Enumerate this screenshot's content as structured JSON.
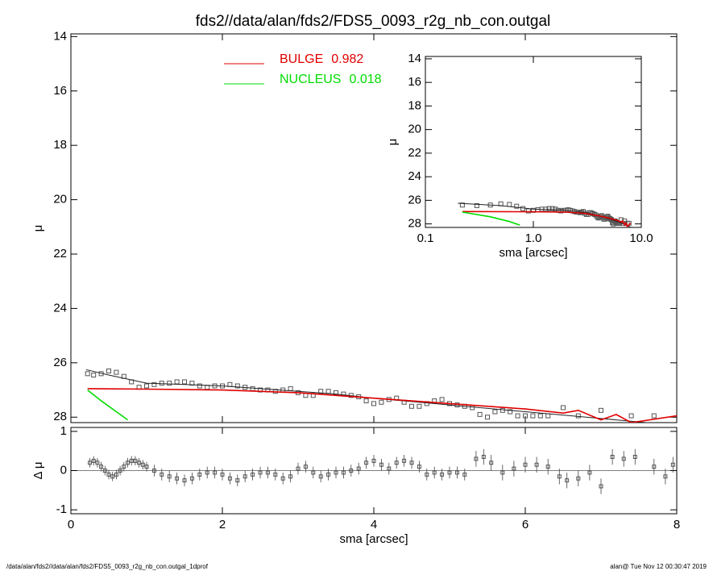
{
  "chart_data": [
    {
      "type": "scatter",
      "title": "fds2//data/alan/fds2/FDS5_0093_r2g_nb_con.outgal",
      "ylabel": "μ",
      "xlim": [
        0,
        8
      ],
      "xticks": [
        0,
        2,
        4,
        6,
        8
      ],
      "ylim": [
        28.2,
        13.9
      ],
      "yticks": [
        14,
        16,
        18,
        20,
        22,
        24,
        26,
        28
      ],
      "legend": "top-center",
      "series": [
        {
          "color": "#555555",
          "marker": "square",
          "x": [
            0.22,
            0.3,
            0.4,
            0.5,
            0.6,
            0.7,
            0.8,
            0.9,
            1.0,
            1.1,
            1.2,
            1.3,
            1.4,
            1.5,
            1.6,
            1.7,
            1.8,
            1.9,
            2.0,
            2.1,
            2.2,
            2.3,
            2.4,
            2.5,
            2.6,
            2.7,
            2.8,
            2.9,
            3.0,
            3.1,
            3.2,
            3.3,
            3.4,
            3.5,
            3.6,
            3.7,
            3.8,
            3.9,
            4.0,
            4.1,
            4.2,
            4.3,
            4.4,
            4.5,
            4.6,
            4.7,
            4.8,
            4.9,
            5.0,
            5.1,
            5.2,
            5.3,
            5.4,
            5.5,
            5.6,
            5.7,
            5.8,
            5.9,
            6.0,
            6.1,
            6.2,
            6.3,
            6.5,
            6.7,
            7.0,
            7.4,
            7.7
          ],
          "values": [
            26.4,
            26.45,
            26.4,
            26.3,
            26.35,
            26.5,
            26.7,
            26.9,
            26.85,
            26.8,
            26.75,
            26.75,
            26.7,
            26.7,
            26.75,
            26.85,
            26.9,
            26.85,
            26.85,
            26.8,
            26.85,
            26.9,
            26.95,
            27.0,
            27.0,
            27.05,
            27.0,
            26.95,
            27.1,
            27.2,
            27.2,
            27.05,
            27.05,
            27.1,
            27.15,
            27.2,
            27.25,
            27.4,
            27.5,
            27.45,
            27.35,
            27.3,
            27.45,
            27.6,
            27.6,
            27.5,
            27.4,
            27.35,
            27.5,
            27.55,
            27.6,
            27.65,
            27.9,
            28.0,
            27.8,
            27.75,
            27.8,
            27.95,
            27.95,
            27.95,
            27.95,
            27.95,
            27.65,
            27.95,
            27.75,
            27.95,
            27.95
          ]
        },
        {
          "color": "#222222",
          "x": [
            0.2,
            0.5,
            1.0,
            1.5,
            2,
            2.5,
            3,
            3.5,
            4,
            5,
            6,
            7,
            8
          ],
          "values": [
            26.25,
            26.45,
            26.75,
            26.8,
            26.85,
            26.95,
            27.05,
            27.15,
            27.3,
            27.55,
            27.8,
            28.05,
            28.3
          ]
        },
        {
          "name": "BULGE",
          "fraction": 0.982,
          "color": "#e00000",
          "x": [
            0.22,
            1,
            2,
            3,
            4,
            5,
            6,
            6.5,
            6.7,
            7.0,
            7.2,
            7.4,
            8
          ],
          "values": [
            26.95,
            26.97,
            27.0,
            27.1,
            27.3,
            27.5,
            27.7,
            27.85,
            27.75,
            28.1,
            27.9,
            28.2,
            27.95
          ]
        },
        {
          "name": "NUCLEUS",
          "fraction": 0.018,
          "color": "#00dd00",
          "x": [
            0.22,
            0.4,
            0.6,
            0.75
          ],
          "values": [
            27.0,
            27.4,
            27.8,
            28.1
          ]
        }
      ]
    },
    {
      "type": "errorbar",
      "xlabel": "sma [arcsec]",
      "ylabel": "Δ μ",
      "xlim": [
        0,
        8
      ],
      "xticks": [
        0,
        2,
        4,
        6,
        8
      ],
      "ylim": [
        -1.1,
        1.1
      ],
      "yticks": [
        -1,
        0,
        1
      ],
      "color": "#444444",
      "x": [
        0.25,
        0.3,
        0.35,
        0.4,
        0.45,
        0.5,
        0.55,
        0.6,
        0.65,
        0.7,
        0.75,
        0.8,
        0.85,
        0.9,
        0.95,
        1.0,
        1.1,
        1.2,
        1.3,
        1.4,
        1.5,
        1.6,
        1.7,
        1.8,
        1.9,
        2.0,
        2.1,
        2.2,
        2.3,
        2.4,
        2.5,
        2.6,
        2.7,
        2.8,
        2.9,
        3.0,
        3.1,
        3.2,
        3.3,
        3.4,
        3.5,
        3.6,
        3.7,
        3.8,
        3.9,
        4.0,
        4.1,
        4.2,
        4.3,
        4.4,
        4.5,
        4.6,
        4.7,
        4.8,
        4.9,
        5.0,
        5.1,
        5.2,
        5.35,
        5.45,
        5.55,
        5.7,
        5.85,
        6.0,
        6.15,
        6.3,
        6.45,
        6.55,
        6.7,
        6.85,
        7.0,
        7.15,
        7.3,
        7.45,
        7.7,
        7.85,
        7.95
      ],
      "values": [
        0.2,
        0.25,
        0.2,
        0.1,
        0.0,
        -0.1,
        -0.15,
        -0.1,
        0.0,
        0.1,
        0.2,
        0.25,
        0.25,
        0.2,
        0.15,
        0.1,
        0.0,
        -0.1,
        -0.15,
        -0.2,
        -0.25,
        -0.2,
        -0.1,
        -0.05,
        -0.05,
        -0.1,
        -0.2,
        -0.25,
        -0.15,
        -0.1,
        -0.05,
        -0.05,
        -0.1,
        -0.2,
        -0.15,
        0.05,
        0.1,
        -0.05,
        -0.15,
        -0.1,
        -0.05,
        -0.05,
        0.0,
        0.05,
        0.2,
        0.25,
        0.15,
        0.05,
        0.2,
        0.25,
        0.2,
        0.1,
        -0.1,
        -0.05,
        -0.1,
        -0.05,
        -0.05,
        -0.1,
        0.3,
        0.35,
        0.2,
        -0.05,
        0.05,
        0.15,
        0.15,
        0.1,
        -0.15,
        -0.25,
        -0.2,
        -0.05,
        -0.4,
        0.35,
        0.3,
        0.35,
        0.1,
        -0.15,
        0.15
      ],
      "errors": [
        0.12,
        0.12,
        0.12,
        0.12,
        0.12,
        0.12,
        0.12,
        0.12,
        0.12,
        0.12,
        0.12,
        0.12,
        0.12,
        0.12,
        0.12,
        0.12,
        0.15,
        0.15,
        0.15,
        0.15,
        0.15,
        0.15,
        0.15,
        0.15,
        0.15,
        0.15,
        0.15,
        0.15,
        0.15,
        0.15,
        0.15,
        0.15,
        0.15,
        0.15,
        0.15,
        0.15,
        0.15,
        0.15,
        0.15,
        0.15,
        0.15,
        0.15,
        0.15,
        0.15,
        0.15,
        0.15,
        0.15,
        0.15,
        0.15,
        0.15,
        0.15,
        0.15,
        0.15,
        0.15,
        0.15,
        0.15,
        0.15,
        0.15,
        0.2,
        0.2,
        0.2,
        0.2,
        0.2,
        0.2,
        0.2,
        0.2,
        0.2,
        0.2,
        0.2,
        0.2,
        0.2,
        0.2,
        0.2,
        0.2,
        0.2,
        0.2,
        0.2
      ]
    },
    {
      "type": "inset",
      "xlabel": "sma [arcsec]",
      "ylabel": "μ",
      "xscale": "log",
      "xlim": [
        0.1,
        10
      ],
      "xticks": [
        0.1,
        {
          "value": 1,
          "label": "1.0"
        },
        {
          "value": 10,
          "label": "10.0"
        }
      ],
      "ylim": [
        28.3,
        13.8
      ],
      "yticks": [
        14,
        16,
        18,
        20,
        22,
        24,
        26,
        28
      ]
    }
  ],
  "footer": {
    "left": "/data/alan/fds2//data/alan/fds2/FDS5_0093_r2g_nb_con.outgal_1dprof",
    "right": "alan@  Tue Nov 12 00:30:47 2019"
  }
}
